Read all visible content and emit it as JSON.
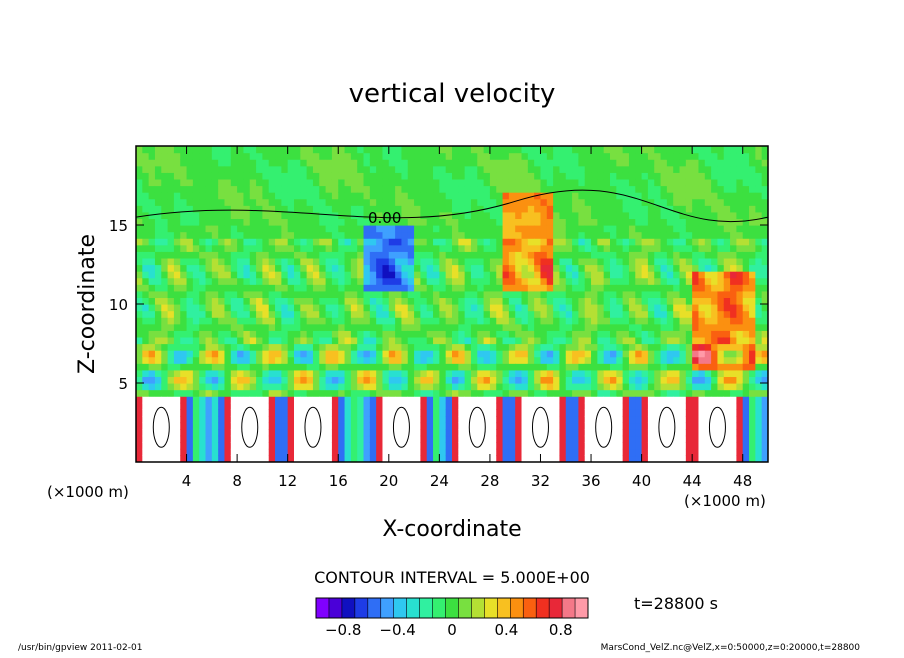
{
  "chart_data": {
    "type": "heatmap",
    "title": "vertical velocity",
    "xlabel": "X-coordinate",
    "ylabel": "Z-coordinate",
    "x_unit_label": "(×1000 m)",
    "y_unit_label": "(×1000 m)",
    "xlim": [
      0,
      50
    ],
    "ylim": [
      0,
      20
    ],
    "x_ticks": [
      4,
      8,
      12,
      16,
      20,
      24,
      28,
      32,
      36,
      40,
      44,
      48
    ],
    "y_ticks": [
      5,
      10,
      15
    ],
    "contour_interval_text": "CONTOUR INTERVAL = 5.000E+00",
    "contour_label": "0.00",
    "time_label": "t=28800 s",
    "colorbar": {
      "range": [
        -1.0,
        1.0
      ],
      "tick_values": [
        -0.8,
        -0.4,
        0,
        0.4,
        0.8
      ],
      "tick_labels": [
        "−0.8",
        "−0.4",
        "0",
        "0.4",
        "0.8"
      ],
      "colors": [
        "#8000ff",
        "#4a00d8",
        "#1010c0",
        "#1e3ce6",
        "#2f6ef5",
        "#3fa0ff",
        "#2fc8f0",
        "#28e0d0",
        "#30f0a0",
        "#34f070",
        "#3ce040",
        "#78e040",
        "#b4e034",
        "#e8e028",
        "#f8c020",
        "#fb9010",
        "#fa6010",
        "#f03020",
        "#e82838",
        "#f47888",
        "#ff9aa8"
      ],
      "below_min_color": "#ffffff",
      "above_max_color": "#ffffff"
    },
    "field_description_regions": {
      "background_value_range": [
        -0.2,
        0.2
      ],
      "lower_layer_top_km": 4,
      "strong_updraft_patches_x_km": [
        2,
        9,
        14,
        21,
        27,
        32,
        37,
        42,
        46
      ]
    }
  },
  "footer": {
    "left": "/usr/bin/gpview   2011-02-01",
    "right": "MarsCond_VelZ.nc@VelZ,x=0:50000,z=0:20000,t=28800"
  }
}
